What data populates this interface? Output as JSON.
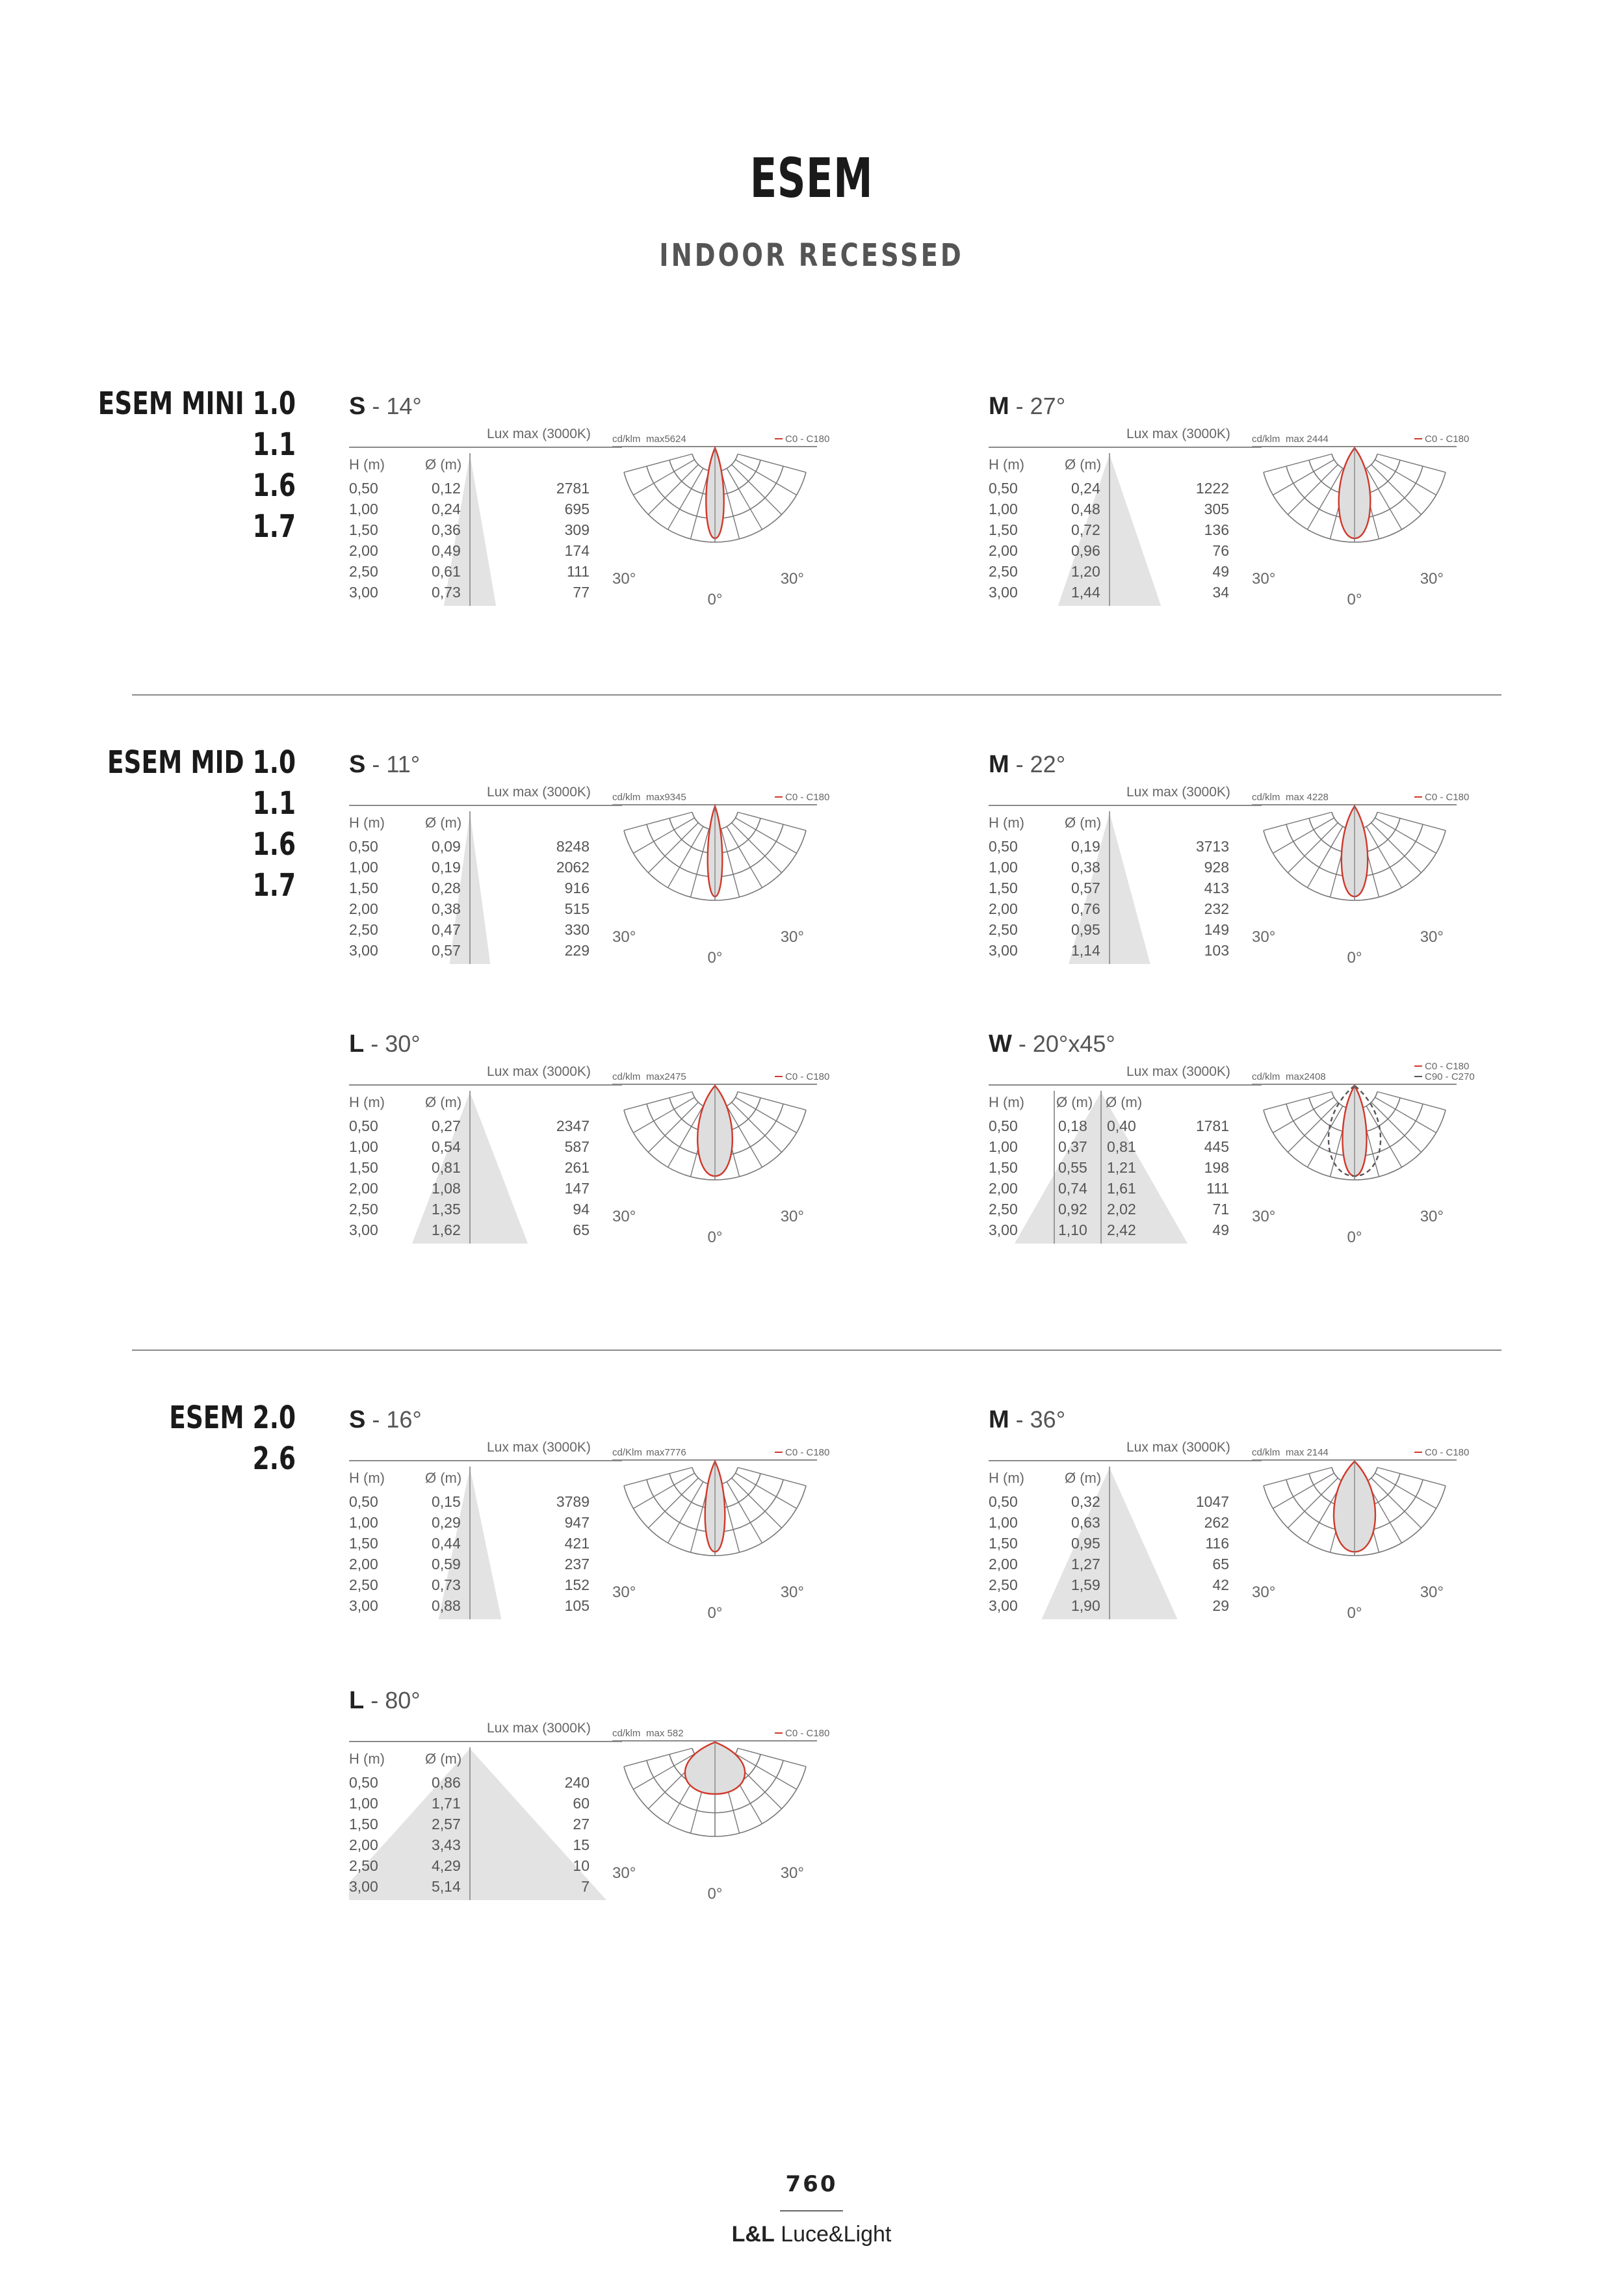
{
  "header": {
    "title": "ESEM",
    "subtitle": "INDOOR RECESSED"
  },
  "families": [
    {
      "lines": [
        "ESEM MINI 1.0",
        "1.1",
        "1.6",
        "1.7"
      ]
    },
    {
      "lines": [
        "ESEM MID 1.0",
        "1.1",
        "1.6",
        "1.7"
      ]
    },
    {
      "lines": [
        "ESEM 2.0",
        "2.6"
      ]
    }
  ],
  "blocks": [
    {
      "code": "S",
      "angle": "- 14°",
      "lux_label": "Lux max (3000K)",
      "cd_label": "cd/klm",
      "max_label": "max5624",
      "legend": [
        "C0 - C180"
      ],
      "cols": [
        "H (m)",
        "Ø (m)"
      ],
      "rows": [
        [
          "0,50",
          "0,12",
          "2781"
        ],
        [
          "1,00",
          "0,24",
          "695"
        ],
        [
          "1,50",
          "0,36",
          "309"
        ],
        [
          "2,00",
          "0,49",
          "174"
        ],
        [
          "2,50",
          "0,61",
          "111"
        ],
        [
          "3,00",
          "0,73",
          "77"
        ]
      ],
      "beam_deg": 14,
      "angle_left": "30°",
      "angle_right": "30°",
      "angle_bottom": "0°"
    },
    {
      "code": "M",
      "angle": "- 27°",
      "lux_label": "Lux max (3000K)",
      "cd_label": "cd/klm",
      "max_label": "max 2444",
      "legend": [
        "C0 - C180"
      ],
      "cols": [
        "H (m)",
        "Ø (m)"
      ],
      "rows": [
        [
          "0,50",
          "0,24",
          "1222"
        ],
        [
          "1,00",
          "0,48",
          "305"
        ],
        [
          "1,50",
          "0,72",
          "136"
        ],
        [
          "2,00",
          "0,96",
          "76"
        ],
        [
          "2,50",
          "1,20",
          "49"
        ],
        [
          "3,00",
          "1,44",
          "34"
        ]
      ],
      "beam_deg": 27,
      "angle_left": "30°",
      "angle_right": "30°",
      "angle_bottom": "0°"
    },
    {
      "code": "S",
      "angle": "- 11°",
      "lux_label": "Lux max (3000K)",
      "cd_label": "cd/klm",
      "max_label": "max9345",
      "legend": [
        "C0 - C180"
      ],
      "cols": [
        "H (m)",
        "Ø (m)"
      ],
      "rows": [
        [
          "0,50",
          "0,09",
          "8248"
        ],
        [
          "1,00",
          "0,19",
          "2062"
        ],
        [
          "1,50",
          "0,28",
          "916"
        ],
        [
          "2,00",
          "0,38",
          "515"
        ],
        [
          "2,50",
          "0,47",
          "330"
        ],
        [
          "3,00",
          "0,57",
          "229"
        ]
      ],
      "beam_deg": 11,
      "angle_left": "30°",
      "angle_right": "30°",
      "angle_bottom": "0°"
    },
    {
      "code": "M",
      "angle": "- 22°",
      "lux_label": "Lux max (3000K)",
      "cd_label": "cd/klm",
      "max_label": "max 4228",
      "legend": [
        "C0 - C180"
      ],
      "cols": [
        "H (m)",
        "Ø (m)"
      ],
      "rows": [
        [
          "0,50",
          "0,19",
          "3713"
        ],
        [
          "1,00",
          "0,38",
          "928"
        ],
        [
          "1,50",
          "0,57",
          "413"
        ],
        [
          "2,00",
          "0,76",
          "232"
        ],
        [
          "2,50",
          "0,95",
          "149"
        ],
        [
          "3,00",
          "1,14",
          "103"
        ]
      ],
      "beam_deg": 22,
      "angle_left": "30°",
      "angle_right": "30°",
      "angle_bottom": "0°"
    },
    {
      "code": "L",
      "angle": "- 30°",
      "lux_label": "Lux max (3000K)",
      "cd_label": "cd/klm",
      "max_label": "max2475",
      "legend": [
        "C0 - C180"
      ],
      "cols": [
        "H (m)",
        "Ø (m)"
      ],
      "rows": [
        [
          "0,50",
          "0,27",
          "2347"
        ],
        [
          "1,00",
          "0,54",
          "587"
        ],
        [
          "1,50",
          "0,81",
          "261"
        ],
        [
          "2,00",
          "1,08",
          "147"
        ],
        [
          "2,50",
          "1,35",
          "94"
        ],
        [
          "3,00",
          "1,62",
          "65"
        ]
      ],
      "beam_deg": 30,
      "angle_left": "30°",
      "angle_right": "30°",
      "angle_bottom": "0°"
    },
    {
      "code": "W",
      "angle": "- 20°x45°",
      "lux_label": "Lux max (3000K)",
      "cd_label": "cd/klm",
      "max_label": "max2408",
      "legend": [
        "C0 - C180",
        "C90 - C270"
      ],
      "cols": [
        "H (m)",
        "Ø (m)",
        "Ø (m)"
      ],
      "rows": [
        [
          "0,50",
          "0,18",
          "0,40",
          "1781"
        ],
        [
          "1,00",
          "0,37",
          "0,81",
          "445"
        ],
        [
          "1,50",
          "0,55",
          "1,21",
          "198"
        ],
        [
          "2,00",
          "0,74",
          "1,61",
          "111"
        ],
        [
          "2,50",
          "0,92",
          "2,02",
          "71"
        ],
        [
          "3,00",
          "1,10",
          "2,42",
          "49"
        ]
      ],
      "beam_deg": 20,
      "beam_deg_2": 45,
      "angle_left": "30°",
      "angle_right": "30°",
      "angle_bottom": "0°"
    },
    {
      "code": "S",
      "angle": "- 16°",
      "lux_label": "Lux max (3000K)",
      "cd_label": "cd/Klm",
      "max_label": "max7776",
      "legend": [
        "C0 - C180"
      ],
      "cols": [
        "H (m)",
        "Ø (m)"
      ],
      "rows": [
        [
          "0,50",
          "0,15",
          "3789"
        ],
        [
          "1,00",
          "0,29",
          "947"
        ],
        [
          "1,50",
          "0,44",
          "421"
        ],
        [
          "2,00",
          "0,59",
          "237"
        ],
        [
          "2,50",
          "0,73",
          "152"
        ],
        [
          "3,00",
          "0,88",
          "105"
        ]
      ],
      "beam_deg": 16,
      "angle_left": "30°",
      "angle_right": "30°",
      "angle_bottom": "0°"
    },
    {
      "code": "M",
      "angle": "- 36°",
      "lux_label": "Lux max (3000K)",
      "cd_label": "cd/klm",
      "max_label": "max 2144",
      "legend": [
        "C0 - C180"
      ],
      "cols": [
        "H (m)",
        "Ø (m)"
      ],
      "rows": [
        [
          "0,50",
          "0,32",
          "1047"
        ],
        [
          "1,00",
          "0,63",
          "262"
        ],
        [
          "1,50",
          "0,95",
          "116"
        ],
        [
          "2,00",
          "1,27",
          "65"
        ],
        [
          "2,50",
          "1,59",
          "42"
        ],
        [
          "3,00",
          "1,90",
          "29"
        ]
      ],
      "beam_deg": 36,
      "angle_left": "30°",
      "angle_right": "30°",
      "angle_bottom": "0°"
    },
    {
      "code": "L",
      "angle": " - 80°",
      "lux_label": "Lux max (3000K)",
      "cd_label": "cd/klm",
      "max_label": "max 582",
      "legend": [
        "C0 - C180"
      ],
      "cols": [
        "H (m)",
        "Ø (m)"
      ],
      "rows": [
        [
          "0,50",
          "0,86",
          "240"
        ],
        [
          "1,00",
          "1,71",
          "60"
        ],
        [
          "1,50",
          "2,57",
          "27"
        ],
        [
          "2,00",
          "3,43",
          "15"
        ],
        [
          "2,50",
          "4,29",
          "10"
        ],
        [
          "3,00",
          "5,14",
          "7"
        ]
      ],
      "beam_deg": 80,
      "angle_left": "30°",
      "angle_right": "30°",
      "angle_bottom": "0°"
    }
  ],
  "colors": {
    "curve": "#d0382b",
    "grid": "#777777",
    "shade": "#e3e3e3",
    "fill": "#dedede"
  },
  "footer": {
    "page_number": "760",
    "brand_bold": "L&L",
    "brand_rest": " Luce&Light"
  }
}
